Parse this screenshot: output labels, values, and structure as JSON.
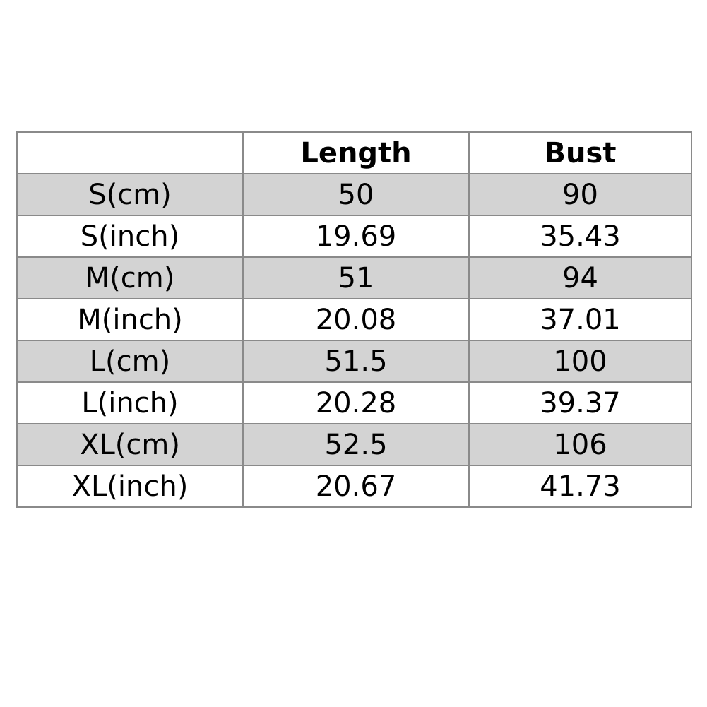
{
  "table": {
    "headers": [
      "",
      "Length",
      "Bust"
    ],
    "rows": [
      [
        "S(cm)",
        "50",
        "90"
      ],
      [
        "S(inch)",
        "19.69",
        "35.43"
      ],
      [
        "M(cm)",
        "51",
        "94"
      ],
      [
        "M(inch)",
        "20.08",
        "37.01"
      ],
      [
        "L(cm)",
        "51.5",
        "100"
      ],
      [
        "L(inch)",
        "20.28",
        "39.37"
      ],
      [
        "XL(cm)",
        "52.5",
        "106"
      ],
      [
        "XL(inch)",
        "20.67",
        "41.73"
      ]
    ],
    "shaded_row_color": "#d3d3d3"
  }
}
